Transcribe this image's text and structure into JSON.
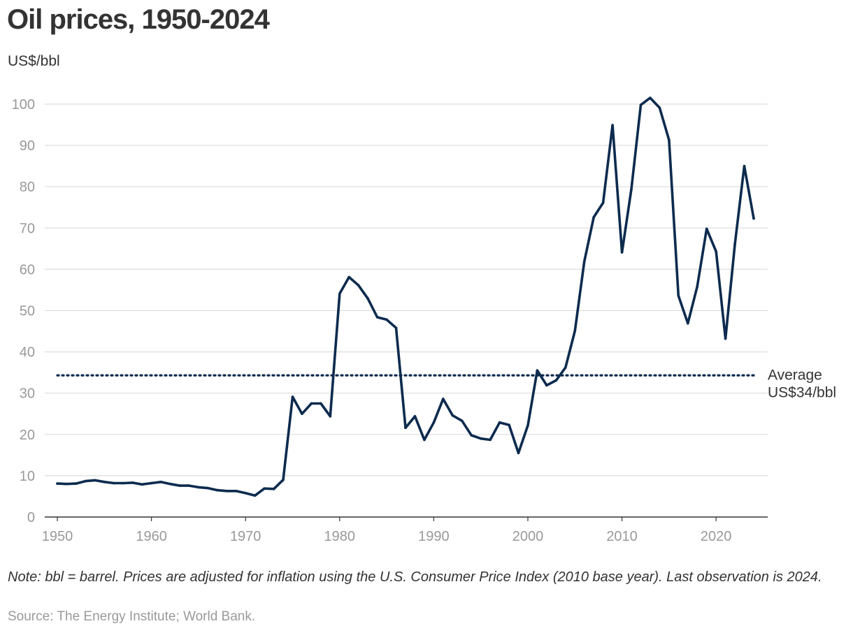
{
  "header": {
    "title": "Oil prices, 1950-2024",
    "unit": "US$/bbl"
  },
  "footer": {
    "note": "Note: bbl = barrel. Prices are adjusted for inflation using the U.S. Consumer Price Index (2010 base year). Last observation is 2024.",
    "source": "Source: The Energy Institute; World Bank."
  },
  "colors": {
    "line": "#0d2b4e",
    "grid": "#dddddd",
    "axis": "#333333",
    "tick_label": "#999999",
    "text": "#333333"
  },
  "chart_data": {
    "type": "line",
    "title": "Oil prices, 1950-2024",
    "xlabel": "",
    "ylabel": "US$/bbl",
    "xlim": [
      1950,
      2024
    ],
    "ylim": [
      0,
      100
    ],
    "grid": true,
    "x_ticks": [
      1950,
      1960,
      1970,
      1980,
      1990,
      2000,
      2010,
      2020
    ],
    "y_ticks": [
      0,
      10,
      20,
      30,
      40,
      50,
      60,
      70,
      80,
      90,
      100
    ],
    "series": [
      {
        "name": "Oil price",
        "x": [
          1950,
          1951,
          1952,
          1953,
          1954,
          1955,
          1956,
          1957,
          1958,
          1959,
          1960,
          1961,
          1962,
          1963,
          1964,
          1965,
          1966,
          1967,
          1968,
          1969,
          1970,
          1971,
          1972,
          1973,
          1974,
          1975,
          1976,
          1977,
          1978,
          1979,
          1980,
          1981,
          1982,
          1983,
          1984,
          1985,
          1986,
          1987,
          1988,
          1989,
          1990,
          1991,
          1992,
          1993,
          1994,
          1995,
          1996,
          1997,
          1998,
          1999,
          2000,
          2001,
          2002,
          2003,
          2004,
          2005,
          2006,
          2007,
          2008,
          2009,
          2010,
          2011,
          2012,
          2013,
          2014,
          2015,
          2016,
          2017,
          2018,
          2019,
          2020,
          2021,
          2022,
          2023,
          2024
        ],
        "values": [
          8.1,
          8.0,
          8.1,
          8.7,
          8.9,
          8.5,
          8.2,
          8.2,
          8.3,
          7.9,
          8.2,
          8.5,
          8.0,
          7.6,
          7.6,
          7.2,
          7.0,
          6.5,
          6.3,
          6.3,
          5.8,
          5.2,
          6.9,
          6.8,
          9.0,
          29.1,
          25.0,
          27.5,
          27.5,
          24.4,
          54.1,
          58.1,
          56.1,
          52.9,
          48.4,
          47.8,
          45.8,
          21.6,
          24.4,
          18.7,
          22.9,
          28.6,
          24.6,
          23.3,
          19.8,
          19.0,
          18.7,
          22.9,
          22.3,
          15.5,
          22.2,
          35.5,
          31.9,
          33.1,
          36.2,
          45.1,
          61.9,
          72.6,
          76.1,
          94.9,
          64.1,
          79.4,
          99.8,
          101.5,
          99.1,
          91.3,
          53.6,
          46.9,
          55.8,
          69.8,
          64.3,
          43.2,
          66.1,
          85.0,
          72.3
        ]
      }
    ],
    "reference_line": {
      "label": "Average",
      "sublabel": "US$34/bbl",
      "value": 34.3,
      "style": "dotted"
    }
  }
}
